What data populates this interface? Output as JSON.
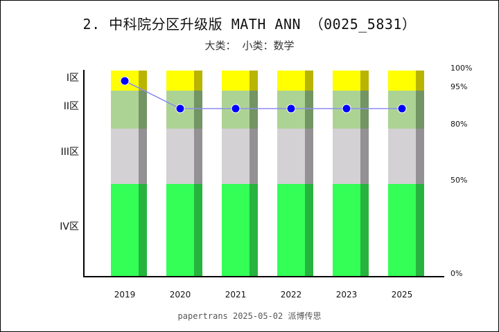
{
  "title": "2. 中科院分区升级版 MATH ANN （0025_5831）",
  "subtitle": "大类：  小类：数学",
  "footer": "papertrans 2025-05-02 派博传思",
  "zone_labels": [
    "I区",
    "II区",
    "III区",
    "IV区"
  ],
  "pct_labels": [
    "100%",
    "95%",
    "80%",
    "50%",
    "0%"
  ],
  "colors": {
    "zone1": "#ffff00",
    "zone1_dark": "#b8b400",
    "zone2": "#add394",
    "zone2_dark": "#739463",
    "zone3": "#d3d1d3",
    "zone3_dark": "#939193",
    "zone4": "#33ff57",
    "zone4_dark": "#26b43e",
    "line": "#8c8cf0",
    "dot": "#0000ff"
  },
  "chart_data": {
    "type": "bar+line",
    "title": "2. 中科院分区升级版 MATH ANN （0025_5831）",
    "subtitle": "大类：  小类：数学",
    "categories": [
      "2019",
      "2020",
      "2021",
      "2022",
      "2023",
      "2025"
    ],
    "stack_bands": [
      {
        "name": "IV区",
        "from": 0,
        "to": 45
      },
      {
        "name": "III区",
        "from": 45,
        "to": 72
      },
      {
        "name": "II区",
        "from": 72,
        "to": 90
      },
      {
        "name": "I区",
        "from": 90,
        "to": 100
      }
    ],
    "series": [
      {
        "name": "分区",
        "values": [
          "I区",
          "II区",
          "II区",
          "II区",
          "II区",
          "II区"
        ]
      }
    ],
    "right_axis_ticks": [
      "100%",
      "95%",
      "80%",
      "50%",
      "0%"
    ],
    "left_axis_ticks": [
      "I区",
      "II区",
      "III区",
      "IV区"
    ]
  }
}
